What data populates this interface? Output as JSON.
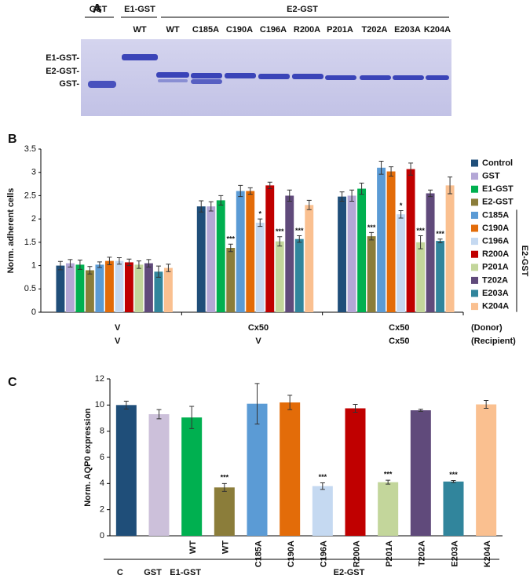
{
  "gel": {
    "panel": "A",
    "groups": [
      "GST",
      "E1-GST",
      "E2-GST"
    ],
    "lanes": [
      "WT",
      "WT",
      "C185A",
      "C190A",
      "C196A",
      "R200A",
      "P201A",
      "T202A",
      "E203A",
      "K204A"
    ],
    "band_labels": [
      "E1-GST-",
      "E2-GST-",
      "GST-"
    ]
  },
  "chart_data": [
    {
      "type": "grouped_bar",
      "panel": "B",
      "y_label": "Norm. adherent cells",
      "categories": [
        [
          "V",
          "V"
        ],
        [
          "Cx50",
          "V"
        ],
        [
          "Cx50",
          "Cx50"
        ]
      ],
      "category_row_labels": [
        "(Donor)",
        "(Recipient)"
      ],
      "ylim": [
        0,
        3.5
      ],
      "yticks": [
        0,
        0.5,
        1,
        1.5,
        2,
        2.5,
        3,
        3.5
      ],
      "legend": "right",
      "legend_bracket_label": "E2-GST",
      "series": [
        {
          "name": "Control",
          "color": "#1f4e79",
          "values": [
            1.0,
            2.27,
            2.48
          ],
          "errors": [
            0.09,
            0.12,
            0.1
          ],
          "significance": [
            null,
            null,
            null
          ]
        },
        {
          "name": "GST",
          "color": "#b4a7d6",
          "values": [
            1.05,
            2.27,
            2.5
          ],
          "errors": [
            0.08,
            0.1,
            0.12
          ],
          "significance": [
            null,
            null,
            null
          ]
        },
        {
          "name": "E1-GST",
          "color": "#00b050",
          "values": [
            1.02,
            2.4,
            2.65
          ],
          "errors": [
            0.1,
            0.1,
            0.12
          ],
          "significance": [
            null,
            null,
            null
          ]
        },
        {
          "name": "E2-GST",
          "color": "#8b7d3a",
          "values": [
            0.9,
            1.38,
            1.63
          ],
          "errors": [
            0.08,
            0.08,
            0.08
          ],
          "significance": [
            null,
            "***",
            "***"
          ]
        },
        {
          "name": "C185A",
          "color": "#5b9bd5",
          "values": [
            1.02,
            2.6,
            3.1
          ],
          "errors": [
            0.06,
            0.12,
            0.14
          ],
          "significance": [
            null,
            null,
            null
          ]
        },
        {
          "name": "C190A",
          "color": "#e36c09",
          "values": [
            1.1,
            2.6,
            3.02
          ],
          "errors": [
            0.08,
            0.07,
            0.1
          ],
          "significance": [
            null,
            null,
            null
          ]
        },
        {
          "name": "C196A",
          "color": "#c5d9f1",
          "values": [
            1.1,
            1.92,
            2.1
          ],
          "errors": [
            0.07,
            0.08,
            0.08
          ],
          "significance": [
            null,
            "*",
            "*"
          ]
        },
        {
          "name": "R200A",
          "color": "#c00000",
          "values": [
            1.07,
            2.72,
            3.07
          ],
          "errors": [
            0.07,
            0.07,
            0.13
          ],
          "significance": [
            null,
            null,
            null
          ]
        },
        {
          "name": "P201A",
          "color": "#c3d69b",
          "values": [
            1.02,
            1.52,
            1.5
          ],
          "errors": [
            0.08,
            0.1,
            0.14
          ],
          "significance": [
            null,
            "***",
            "***"
          ]
        },
        {
          "name": "T202A",
          "color": "#604a7b",
          "values": [
            1.05,
            2.5,
            2.55
          ],
          "errors": [
            0.08,
            0.12,
            0.07
          ],
          "significance": [
            null,
            null,
            null
          ]
        },
        {
          "name": "E203A",
          "color": "#31859c",
          "values": [
            0.87,
            1.57,
            1.53
          ],
          "errors": [
            0.12,
            0.07,
            0.04
          ],
          "significance": [
            null,
            "***",
            "***"
          ]
        },
        {
          "name": "K204A",
          "color": "#fac090",
          "values": [
            0.95,
            2.3,
            2.72
          ],
          "errors": [
            0.08,
            0.1,
            0.18
          ],
          "significance": [
            null,
            null,
            null
          ]
        }
      ]
    },
    {
      "type": "bar",
      "panel": "C",
      "y_label": "Norm. AQP0 expression",
      "categories": [
        null,
        null,
        "WT",
        "WT",
        "C185A",
        "C190A",
        "C196A",
        "R200A",
        "P201A",
        "T202A",
        "E203A",
        "K204A"
      ],
      "groups": [
        "C",
        "GST",
        "E1-GST",
        "E2-GST"
      ],
      "values": [
        10.0,
        9.3,
        9.05,
        3.7,
        10.1,
        10.2,
        3.8,
        9.75,
        4.1,
        9.6,
        4.15,
        10.05
      ],
      "errors": [
        0.3,
        0.35,
        0.85,
        0.3,
        1.55,
        0.55,
        0.25,
        0.3,
        0.15,
        0.08,
        0.08,
        0.3
      ],
      "colors": [
        "#1f4e79",
        "#ccc0da",
        "#00b050",
        "#8b7d3a",
        "#5b9bd5",
        "#e36c09",
        "#c5d9f1",
        "#c00000",
        "#c3d69b",
        "#604a7b",
        "#31859c",
        "#fac090"
      ],
      "significance": [
        null,
        null,
        null,
        "***",
        null,
        null,
        "***",
        null,
        "***",
        null,
        "***",
        null
      ],
      "ylim": [
        0,
        12
      ],
      "yticks": [
        0,
        2,
        4,
        6,
        8,
        10,
        12
      ]
    }
  ]
}
